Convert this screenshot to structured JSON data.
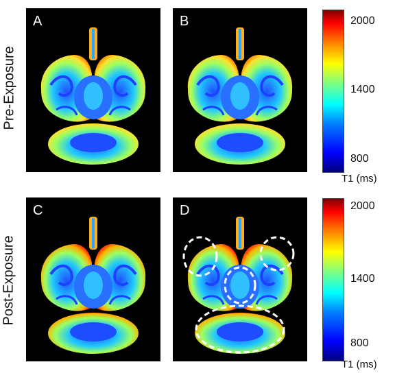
{
  "rows": {
    "top_label": "Pre-Exposure",
    "bottom_label": "Post-Exposure"
  },
  "panels": [
    {
      "label": "A"
    },
    {
      "label": "B"
    },
    {
      "label": "C"
    },
    {
      "label": "D"
    }
  ],
  "colorbar_top": {
    "max_label": "2000",
    "mid_label": "1400",
    "min_label": "800",
    "unit": "T1 (ms)"
  },
  "colorbar_bottom": {
    "max_label": "2000",
    "mid_label": "1400",
    "min_label": "800",
    "unit": "T1 (ms)"
  },
  "colors": {
    "background": "#000000",
    "cmap_low": "#00007f",
    "cmap_high": "#7f0000",
    "ring": "#ffffff"
  }
}
